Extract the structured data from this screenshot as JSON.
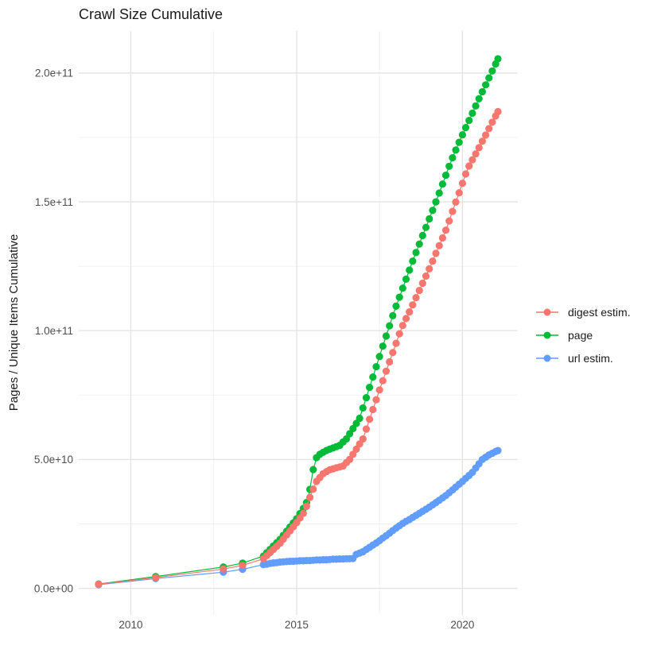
{
  "title": "Crawl Size Cumulative",
  "axes": {
    "y_title": "Pages / Unique Items Cumulative",
    "x_range": [
      2008.43,
      2021.67
    ],
    "y_range_billions": [
      -10.3,
      216.3
    ],
    "x_ticks": [
      {
        "value": 2010,
        "label": "2010"
      },
      {
        "value": 2015,
        "label": "2015"
      },
      {
        "value": 2020,
        "label": "2020"
      }
    ],
    "x_minor_ticks": [
      2012.5,
      2017.5
    ],
    "y_ticks": [
      {
        "value": 0,
        "label": "0.0e+00"
      },
      {
        "value": 50,
        "label": "5.0e+10"
      },
      {
        "value": 100,
        "label": "1.0e+11"
      },
      {
        "value": 150,
        "label": "1.5e+11"
      },
      {
        "value": 200,
        "label": "2.0e+11"
      }
    ],
    "y_minor_ticks": [
      25,
      75,
      125,
      175
    ]
  },
  "legend": {
    "items": [
      {
        "label": "digest estim.",
        "color": "#F8766D"
      },
      {
        "label": "page",
        "color": "#00BA38"
      },
      {
        "label": "url estim.",
        "color": "#619CFF"
      }
    ]
  },
  "colors": {
    "digest": "#F8766D",
    "page": "#00BA38",
    "url": "#619CFF",
    "grid_major": "#E4E4E4",
    "grid_minor": "#F0F0F0",
    "tick_text": "#4d4d4d",
    "title_text": "#1a1a1a"
  },
  "chart_data": {
    "type": "line",
    "title": "Crawl Size Cumulative",
    "xlabel": "",
    "ylabel": "Pages / Unique Items Cumulative",
    "values_unit": "pages, billions (1e9)",
    "xlim": [
      2008.43,
      2021.67
    ],
    "ylim_billions": [
      -10.3,
      216.3
    ],
    "grid": true,
    "legend_position": "right",
    "marker": "point-with-line",
    "series": [
      {
        "name": "page",
        "color": "#00BA38",
        "points": [
          [
            2009.03,
            1.7
          ],
          [
            2010.75,
            4.6
          ],
          [
            2012.79,
            8.3
          ],
          [
            2013.37,
            9.8
          ],
          [
            2014.0,
            12.5
          ],
          [
            2014.1,
            13.8
          ],
          [
            2014.2,
            15.1
          ],
          [
            2014.3,
            16.4
          ],
          [
            2014.4,
            17.7
          ],
          [
            2014.5,
            19.0
          ],
          [
            2014.6,
            20.6
          ],
          [
            2014.7,
            22.2
          ],
          [
            2014.8,
            23.8
          ],
          [
            2014.9,
            25.4
          ],
          [
            2015.0,
            27.0
          ],
          [
            2015.1,
            29.0
          ],
          [
            2015.2,
            31.0
          ],
          [
            2015.3,
            33.3
          ],
          [
            2015.4,
            38.4
          ],
          [
            2015.5,
            46.1
          ],
          [
            2015.6,
            50.7
          ],
          [
            2015.7,
            52.0
          ],
          [
            2015.8,
            52.8
          ],
          [
            2015.9,
            53.5
          ],
          [
            2016.0,
            54.0
          ],
          [
            2016.1,
            54.5
          ],
          [
            2016.2,
            55.0
          ],
          [
            2016.3,
            55.5
          ],
          [
            2016.4,
            56.8
          ],
          [
            2016.5,
            58.0
          ],
          [
            2016.6,
            60.0
          ],
          [
            2016.7,
            62.0
          ],
          [
            2016.8,
            64.0
          ],
          [
            2016.9,
            66.0
          ],
          [
            2017.0,
            70.0
          ],
          [
            2017.1,
            74.0
          ],
          [
            2017.2,
            78.0
          ],
          [
            2017.3,
            82.0
          ],
          [
            2017.4,
            86.0
          ],
          [
            2017.5,
            90.0
          ],
          [
            2017.6,
            94.0
          ],
          [
            2017.7,
            97.9
          ],
          [
            2017.8,
            101.9
          ],
          [
            2017.9,
            105.8
          ],
          [
            2018.0,
            109.5
          ],
          [
            2018.1,
            113.0
          ],
          [
            2018.2,
            116.5
          ],
          [
            2018.3,
            120.0
          ],
          [
            2018.4,
            123.5
          ],
          [
            2018.5,
            127.0
          ],
          [
            2018.6,
            130.3
          ],
          [
            2018.7,
            133.6
          ],
          [
            2018.8,
            136.9
          ],
          [
            2018.9,
            140.1
          ],
          [
            2019.0,
            143.4
          ],
          [
            2019.1,
            146.7
          ],
          [
            2019.2,
            150.0
          ],
          [
            2019.3,
            153.4
          ],
          [
            2019.4,
            156.9
          ],
          [
            2019.5,
            160.3
          ],
          [
            2019.6,
            163.8
          ],
          [
            2019.7,
            167.1
          ],
          [
            2019.8,
            170.1
          ],
          [
            2019.9,
            173.1
          ],
          [
            2020.0,
            176.0
          ],
          [
            2020.1,
            178.8
          ],
          [
            2020.2,
            181.6
          ],
          [
            2020.3,
            184.4
          ],
          [
            2020.4,
            187.2
          ],
          [
            2020.5,
            190.0
          ],
          [
            2020.6,
            192.7
          ],
          [
            2020.7,
            195.4
          ],
          [
            2020.8,
            198.1
          ],
          [
            2020.9,
            200.8
          ],
          [
            2021.0,
            203.5
          ],
          [
            2021.07,
            205.5
          ]
        ]
      },
      {
        "name": "url estim.",
        "color": "#619CFF",
        "points": [
          [
            2009.03,
            1.4
          ],
          [
            2010.75,
            3.8
          ],
          [
            2012.79,
            6.3
          ],
          [
            2013.37,
            7.4
          ],
          [
            2014.0,
            9.2
          ],
          [
            2014.1,
            9.4
          ],
          [
            2014.2,
            9.7
          ],
          [
            2014.3,
            9.9
          ],
          [
            2014.4,
            10.0
          ],
          [
            2014.5,
            10.2
          ],
          [
            2014.6,
            10.3
          ],
          [
            2014.7,
            10.4
          ],
          [
            2014.8,
            10.5
          ],
          [
            2014.9,
            10.5
          ],
          [
            2015.0,
            10.6
          ],
          [
            2015.1,
            10.7
          ],
          [
            2015.2,
            10.7
          ],
          [
            2015.3,
            10.8
          ],
          [
            2015.4,
            10.8
          ],
          [
            2015.5,
            10.9
          ],
          [
            2015.6,
            11.0
          ],
          [
            2015.7,
            11.0
          ],
          [
            2015.8,
            11.1
          ],
          [
            2015.9,
            11.1
          ],
          [
            2016.0,
            11.2
          ],
          [
            2016.1,
            11.3
          ],
          [
            2016.2,
            11.3
          ],
          [
            2016.3,
            11.4
          ],
          [
            2016.4,
            11.4
          ],
          [
            2016.5,
            11.5
          ],
          [
            2016.6,
            11.5
          ],
          [
            2016.7,
            11.6
          ],
          [
            2016.8,
            13.2
          ],
          [
            2016.9,
            13.7
          ],
          [
            2017.0,
            14.2
          ],
          [
            2017.1,
            15.1
          ],
          [
            2017.2,
            15.9
          ],
          [
            2017.3,
            16.8
          ],
          [
            2017.4,
            17.6
          ],
          [
            2017.5,
            18.5
          ],
          [
            2017.6,
            19.5
          ],
          [
            2017.7,
            20.4
          ],
          [
            2017.8,
            21.4
          ],
          [
            2017.9,
            22.4
          ],
          [
            2018.0,
            23.4
          ],
          [
            2018.1,
            24.3
          ],
          [
            2018.2,
            25.2
          ],
          [
            2018.3,
            26.0
          ],
          [
            2018.4,
            26.7
          ],
          [
            2018.5,
            27.5
          ],
          [
            2018.6,
            28.3
          ],
          [
            2018.7,
            29.1
          ],
          [
            2018.8,
            29.9
          ],
          [
            2018.9,
            30.7
          ],
          [
            2019.0,
            31.5
          ],
          [
            2019.1,
            32.4
          ],
          [
            2019.2,
            33.3
          ],
          [
            2019.3,
            34.2
          ],
          [
            2019.4,
            35.1
          ],
          [
            2019.5,
            36.0
          ],
          [
            2019.6,
            37.1
          ],
          [
            2019.7,
            38.2
          ],
          [
            2019.8,
            39.3
          ],
          [
            2019.9,
            40.4
          ],
          [
            2020.0,
            41.5
          ],
          [
            2020.1,
            42.7
          ],
          [
            2020.2,
            43.8
          ],
          [
            2020.3,
            45.0
          ],
          [
            2020.4,
            46.7
          ],
          [
            2020.5,
            48.3
          ],
          [
            2020.6,
            50.0
          ],
          [
            2020.7,
            50.9
          ],
          [
            2020.8,
            51.8
          ],
          [
            2020.9,
            52.4
          ],
          [
            2021.0,
            53.1
          ],
          [
            2021.07,
            53.5
          ]
        ]
      },
      {
        "name": "digest estim.",
        "color": "#F8766D",
        "points": [
          [
            2009.03,
            1.6
          ],
          [
            2010.75,
            4.2
          ],
          [
            2012.79,
            7.5
          ],
          [
            2013.37,
            8.9
          ],
          [
            2014.0,
            11.5
          ],
          [
            2014.1,
            12.7
          ],
          [
            2014.2,
            13.9
          ],
          [
            2014.3,
            15.1
          ],
          [
            2014.4,
            16.3
          ],
          [
            2014.5,
            17.5
          ],
          [
            2014.6,
            19.1
          ],
          [
            2014.7,
            20.7
          ],
          [
            2014.8,
            22.3
          ],
          [
            2014.9,
            23.9
          ],
          [
            2015.0,
            25.5
          ],
          [
            2015.1,
            27.3
          ],
          [
            2015.2,
            29.1
          ],
          [
            2015.3,
            31.8
          ],
          [
            2015.4,
            35.3
          ],
          [
            2015.5,
            38.5
          ],
          [
            2015.6,
            41.5
          ],
          [
            2015.7,
            43.0
          ],
          [
            2015.8,
            44.5
          ],
          [
            2015.9,
            45.3
          ],
          [
            2016.0,
            46.0
          ],
          [
            2016.1,
            46.4
          ],
          [
            2016.2,
            46.8
          ],
          [
            2016.3,
            47.1
          ],
          [
            2016.4,
            47.5
          ],
          [
            2016.5,
            48.8
          ],
          [
            2016.6,
            50.0
          ],
          [
            2016.7,
            52.0
          ],
          [
            2016.8,
            54.0
          ],
          [
            2016.9,
            56.0
          ],
          [
            2017.0,
            58.0
          ],
          [
            2017.1,
            61.8
          ],
          [
            2017.2,
            65.6
          ],
          [
            2017.3,
            69.4
          ],
          [
            2017.4,
            73.2
          ],
          [
            2017.5,
            77.0
          ],
          [
            2017.6,
            80.6
          ],
          [
            2017.7,
            84.3
          ],
          [
            2017.8,
            87.9
          ],
          [
            2017.9,
            91.5
          ],
          [
            2018.0,
            95.1
          ],
          [
            2018.1,
            98.8
          ],
          [
            2018.2,
            102.0
          ],
          [
            2018.3,
            104.7
          ],
          [
            2018.4,
            107.3
          ],
          [
            2018.5,
            110.0
          ],
          [
            2018.6,
            112.8
          ],
          [
            2018.7,
            115.6
          ],
          [
            2018.8,
            118.4
          ],
          [
            2018.9,
            121.2
          ],
          [
            2019.0,
            124.0
          ],
          [
            2019.1,
            127.0
          ],
          [
            2019.2,
            130.0
          ],
          [
            2019.3,
            133.0
          ],
          [
            2019.4,
            136.0
          ],
          [
            2019.5,
            139.0
          ],
          [
            2019.6,
            142.6
          ],
          [
            2019.7,
            146.3
          ],
          [
            2019.8,
            149.9
          ],
          [
            2019.9,
            153.5
          ],
          [
            2020.0,
            157.2
          ],
          [
            2020.1,
            160.8
          ],
          [
            2020.2,
            163.9
          ],
          [
            2020.3,
            166.3
          ],
          [
            2020.4,
            168.6
          ],
          [
            2020.5,
            171.0
          ],
          [
            2020.6,
            173.5
          ],
          [
            2020.7,
            175.9
          ],
          [
            2020.8,
            178.4
          ],
          [
            2020.9,
            180.9
          ],
          [
            2021.0,
            183.3
          ],
          [
            2021.07,
            185.0
          ]
        ]
      }
    ]
  }
}
